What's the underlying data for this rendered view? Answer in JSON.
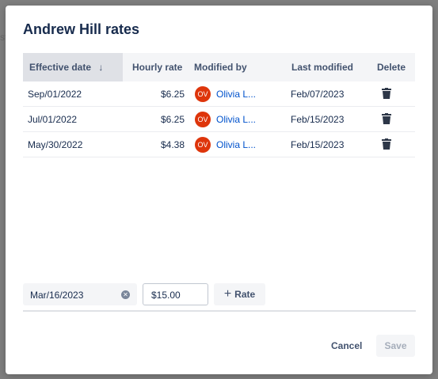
{
  "modal": {
    "title": "Andrew Hill rates"
  },
  "table": {
    "columns": {
      "effective_date": "Effective date",
      "hourly_rate": "Hourly rate",
      "modified_by": "Modified by",
      "last_modified": "Last modified",
      "delete": "Delete"
    },
    "sort_icon": "arrow-down-icon",
    "rows": [
      {
        "effective_date": "Sep/01/2022",
        "hourly_rate": "$6.25",
        "avatar": "OV",
        "modified_by": "Olivia L...",
        "last_modified": "Feb/07/2023"
      },
      {
        "effective_date": "Jul/01/2022",
        "hourly_rate": "$6.25",
        "avatar": "OV",
        "modified_by": "Olivia L...",
        "last_modified": "Feb/15/2023"
      },
      {
        "effective_date": "May/30/2022",
        "hourly_rate": "$4.38",
        "avatar": "OV",
        "modified_by": "Olivia L...",
        "last_modified": "Feb/15/2023"
      }
    ]
  },
  "editor": {
    "date_value": "Mar/16/2023",
    "rate_value": "$15.00",
    "add_rate_label": "Rate"
  },
  "footer": {
    "cancel_label": "Cancel",
    "save_label": "Save"
  },
  "colors": {
    "avatar": "#de350b",
    "link": "#0052cc",
    "header_bg": "#f4f5f7",
    "sorted_header_bg": "#dfe1e6"
  }
}
